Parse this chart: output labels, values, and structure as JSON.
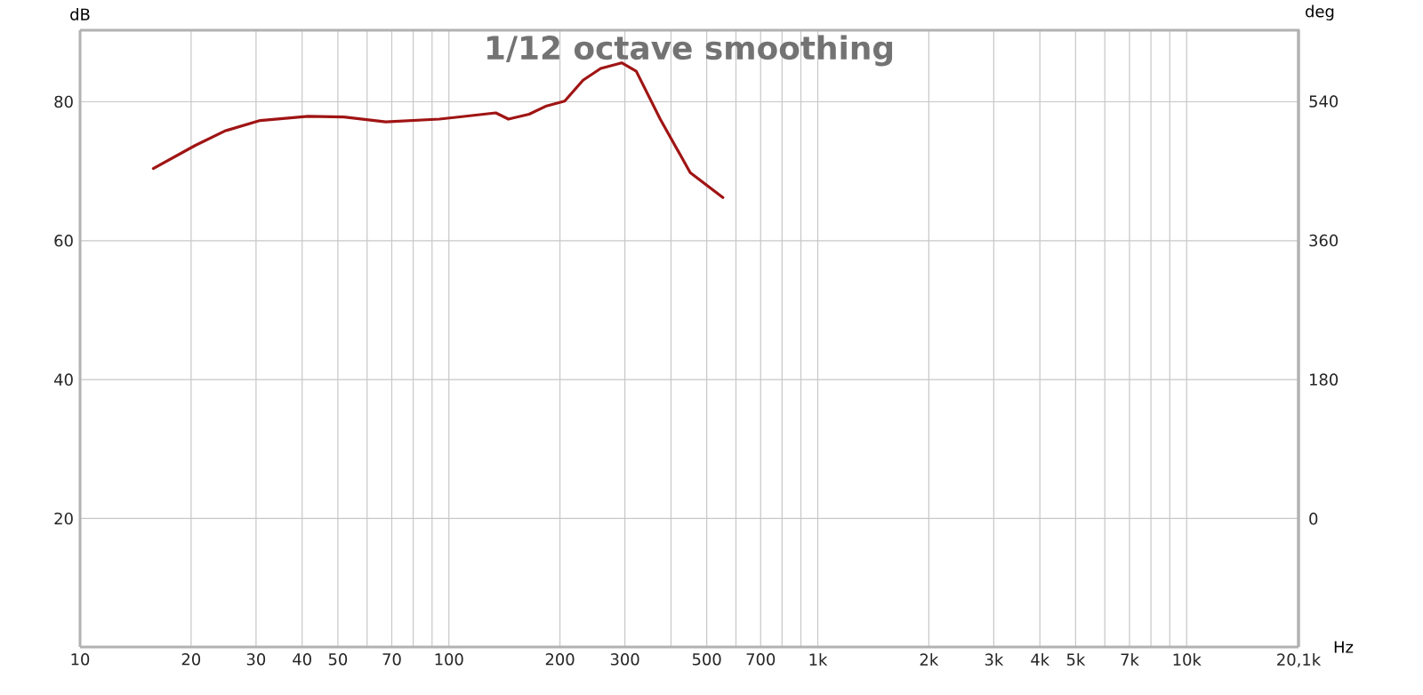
{
  "chart_data": {
    "type": "line",
    "title": "1/12 octave smoothing",
    "xlabel": "Hz",
    "ylabel": "dB",
    "y2label": "deg",
    "x": [
      15.8,
      20.5,
      24.7,
      30.8,
      41.5,
      51.9,
      67.4,
      94.2,
      134,
      145,
      165,
      184,
      206,
      231,
      258,
      294,
      322,
      374,
      451,
      553
    ],
    "values": [
      70.4,
      73.7,
      75.8,
      77.3,
      77.9,
      77.8,
      77.1,
      77.5,
      78.4,
      77.5,
      78.2,
      79.4,
      80.1,
      83.1,
      84.8,
      85.6,
      84.4,
      77.5,
      69.8,
      66.2
    ],
    "color": "#a01414",
    "xlim": [
      10,
      20100
    ],
    "ylim": [
      1.5,
      90.3
    ],
    "y2lim": [
      -166,
      632
    ],
    "xticks": [
      10,
      20,
      30,
      40,
      50,
      {
        "value": 60,
        "label": null
      },
      70,
      {
        "value": 80,
        "label": null
      },
      {
        "value": 90,
        "label": null
      },
      100,
      200,
      300,
      {
        "value": 400,
        "label": null
      },
      500,
      {
        "value": 600,
        "label": null
      },
      700,
      {
        "value": 800,
        "label": null
      },
      {
        "value": 900,
        "label": null
      },
      {
        "value": 1000,
        "label": "1k"
      },
      {
        "value": 2000,
        "label": "2k"
      },
      {
        "value": 3000,
        "label": "3k"
      },
      {
        "value": 4000,
        "label": "4k"
      },
      {
        "value": 5000,
        "label": "5k"
      },
      {
        "value": 6000,
        "label": null
      },
      {
        "value": 7000,
        "label": "7k"
      },
      {
        "value": 8000,
        "label": null
      },
      {
        "value": 9000,
        "label": null
      },
      {
        "value": 10000,
        "label": "10k"
      },
      {
        "value": 20100,
        "label": "20,1k"
      }
    ],
    "yticks": [
      20,
      40,
      60,
      80
    ],
    "y2ticks": [
      0,
      180,
      360,
      540
    ],
    "log": "x",
    "grid": true
  }
}
